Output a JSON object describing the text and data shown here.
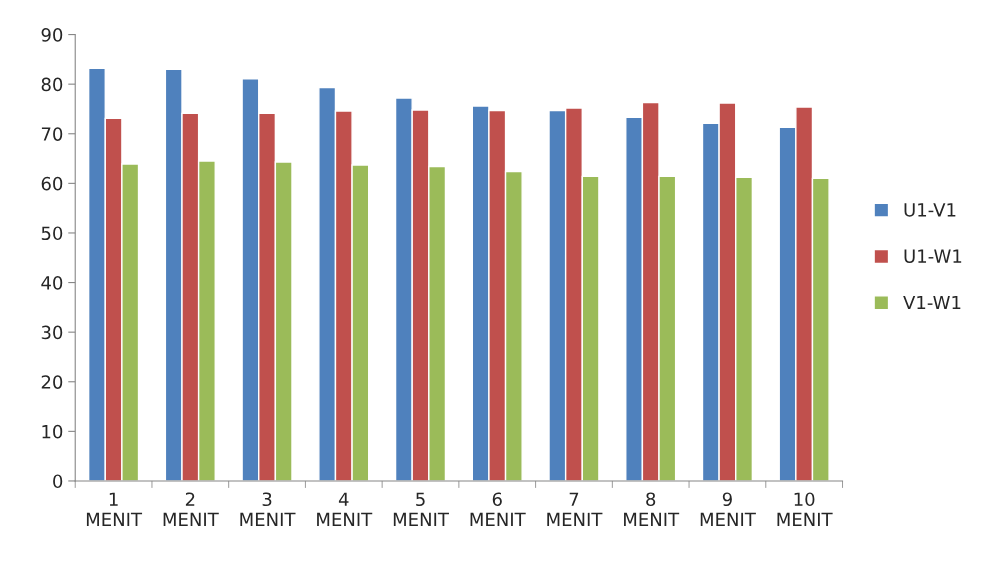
{
  "chart_data": {
    "type": "bar",
    "categories": [
      "1\nMENIT",
      "2\nMENIT",
      "3\nMENIT",
      "4\nMENIT",
      "5\nMENIT",
      "6\nMENIT",
      "7\nMENIT",
      "8\nMENIT",
      "9\nMENIT",
      "10\nMENIT"
    ],
    "series": [
      {
        "name": "U1-V1",
        "color": "#4f81bd",
        "values": [
          83.2,
          83.0,
          81.1,
          79.3,
          77.2,
          75.6,
          74.7,
          73.3,
          72.1,
          71.3
        ]
      },
      {
        "name": "U1-W1",
        "color": "#c0504d",
        "values": [
          73.1,
          74.1,
          74.1,
          74.6,
          74.8,
          74.7,
          75.2,
          76.3,
          76.2,
          75.4
        ]
      },
      {
        "name": "V1-W1",
        "color": "#9bbb59",
        "values": [
          63.9,
          64.5,
          64.3,
          63.7,
          63.4,
          62.4,
          61.4,
          61.4,
          61.2,
          61.0
        ]
      }
    ],
    "ylim": [
      0,
      90
    ],
    "yticks": [
      0,
      10,
      20,
      30,
      40,
      50,
      60,
      70,
      80,
      90
    ],
    "grid": false,
    "legend": "right"
  }
}
